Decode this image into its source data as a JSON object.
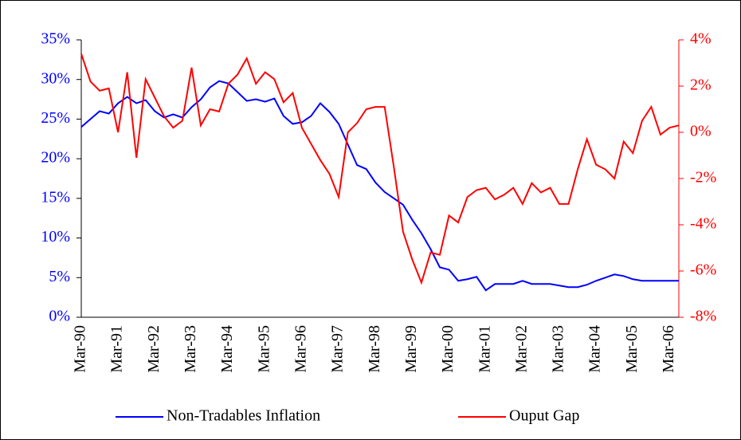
{
  "chart_data": {
    "type": "line",
    "categories": [
      "Mar-90",
      null,
      null,
      null,
      "Mar-91",
      null,
      null,
      null,
      "Mar-92",
      null,
      null,
      null,
      "Mar-93",
      null,
      null,
      null,
      "Mar-94",
      null,
      null,
      null,
      "Mar-95",
      null,
      null,
      null,
      "Mar-96",
      null,
      null,
      null,
      "Mar-97",
      null,
      null,
      null,
      "Mar-98",
      null,
      null,
      null,
      "Mar-99",
      null,
      null,
      null,
      "Mar-00",
      null,
      null,
      null,
      "Mar-01",
      null,
      null,
      null,
      "Mar-02",
      null,
      null,
      null,
      "Mar-03",
      null,
      null,
      null,
      "Mar-04",
      null,
      null,
      null,
      "Mar-05",
      null,
      null,
      null,
      "Mar-06",
      null
    ],
    "series": [
      {
        "name": "Non-Tradables Inflation",
        "color": "#0000ff",
        "axis": "y",
        "values": [
          24,
          25,
          26,
          25.7,
          27,
          27.8,
          27,
          27.4,
          26,
          25.2,
          25.6,
          25.2,
          26.5,
          27.5,
          29,
          29.8,
          29.5,
          28.4,
          27.3,
          27.5,
          27.2,
          27.6,
          25.4,
          24.4,
          24.6,
          25.4,
          27,
          25.9,
          24.4,
          21.8,
          19.2,
          18.7,
          17,
          15.8,
          15,
          14.2,
          12.3,
          10.6,
          8.6,
          6.3,
          6,
          4.6,
          4.8,
          5.1,
          3.4,
          4.2,
          4.2,
          4.2,
          4.6,
          4.2,
          4.2,
          4.2,
          4,
          3.8,
          3.8,
          4.1,
          4.6,
          5,
          5.4,
          5.2,
          4.8,
          4.6,
          4.6,
          4.6,
          4.6,
          4.6
        ]
      },
      {
        "name": "Ouput Gap",
        "color": "#ff0000",
        "axis": "y2",
        "values": [
          3.4,
          2.2,
          1.8,
          1.9,
          0,
          2.6,
          -1.1,
          2.3,
          1.5,
          0.7,
          0.2,
          0.5,
          2.8,
          0.3,
          1,
          0.9,
          2.1,
          2.5,
          3.2,
          2.1,
          2.6,
          2.3,
          1.3,
          1.7,
          0.2,
          -0.5,
          -1.2,
          -1.8,
          -2.8,
          0,
          0.4,
          1,
          1.1,
          1.1,
          -1.5,
          -4.3,
          -5.5,
          -6.5,
          -5.2,
          -5.3,
          -3.6,
          -3.9,
          -2.8,
          -2.5,
          -2.4,
          -2.9,
          -2.7,
          -2.4,
          -3.1,
          -2.2,
          -2.6,
          -2.4,
          -3.1,
          -3.1,
          -1.6,
          -0.3,
          -1.4,
          -1.6,
          -2,
          -0.4,
          -0.9,
          0.5,
          1.1,
          -0.1,
          0.2,
          0.3
        ]
      }
    ],
    "ylim": [
      0,
      35
    ],
    "yticks": [
      {
        "value": 0,
        "label": "0%"
      },
      {
        "value": 5,
        "label": "5%"
      },
      {
        "value": 10,
        "label": "10%"
      },
      {
        "value": 15,
        "label": "15%"
      },
      {
        "value": 20,
        "label": "20%"
      },
      {
        "value": 25,
        "label": "25%"
      },
      {
        "value": 30,
        "label": "30%"
      },
      {
        "value": 35,
        "label": "35%"
      }
    ],
    "y2lim": [
      -8,
      4
    ],
    "y2ticks": [
      {
        "value": -8,
        "label": "-8%"
      },
      {
        "value": -6,
        "label": "-6%"
      },
      {
        "value": -4,
        "label": "-4%"
      },
      {
        "value": -2,
        "label": "-2%"
      },
      {
        "value": 0,
        "label": "0%"
      },
      {
        "value": 2,
        "label": "2%"
      },
      {
        "value": 4,
        "label": "4%"
      }
    ],
    "legend": "bottom"
  }
}
